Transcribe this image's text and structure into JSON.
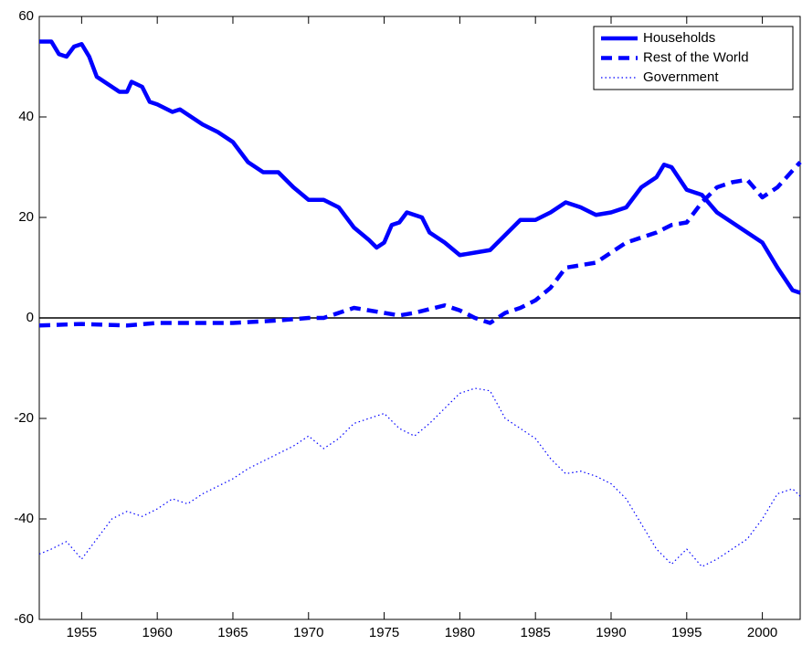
{
  "chart_data": {
    "type": "line",
    "xlim": [
      1952.2,
      2002.5
    ],
    "xticks": [
      1955,
      1960,
      1965,
      1970,
      1975,
      1980,
      1985,
      1990,
      1995,
      2000
    ],
    "ylim": [
      -60,
      60
    ],
    "yticks": [
      -60,
      -40,
      -20,
      0,
      20,
      40,
      60
    ],
    "legend": "top-right",
    "series": [
      {
        "name": "Households",
        "color": "#0000ff",
        "style": "solid",
        "x": [
          1952.2,
          1953,
          1953.5,
          1954,
          1954.5,
          1955,
          1955.5,
          1956,
          1957,
          1957.5,
          1958,
          1958.3,
          1959,
          1959.5,
          1960,
          1961,
          1961.5,
          1962,
          1963,
          1964,
          1965,
          1966,
          1967,
          1968,
          1969,
          1970,
          1971,
          1972,
          1973,
          1974,
          1974.5,
          1975,
          1975.5,
          1976,
          1976.5,
          1977,
          1977.5,
          1978,
          1979,
          1980,
          1981,
          1982,
          1983,
          1984,
          1985,
          1986,
          1987,
          1988,
          1989,
          1990,
          1991,
          1992,
          1993,
          1993.5,
          1994,
          1995,
          1996,
          1997,
          1998,
          1999,
          2000,
          2001,
          2002,
          2002.5
        ],
        "values": [
          55,
          55,
          52.5,
          52,
          54,
          54.5,
          52,
          48,
          46,
          45,
          45,
          47,
          46,
          43,
          42.5,
          41,
          41.5,
          40.5,
          38.5,
          37,
          35,
          31,
          29,
          29,
          26,
          23.5,
          23.5,
          22,
          18,
          15.5,
          14,
          15,
          18.5,
          19,
          21,
          20.5,
          20,
          17,
          15,
          12.5,
          13,
          13.5,
          16.5,
          19.5,
          19.5,
          21,
          23,
          22,
          20.5,
          21,
          22,
          26,
          28,
          30.5,
          30,
          25.5,
          24.5,
          21,
          19,
          17,
          15,
          10,
          5.5,
          5
        ]
      },
      {
        "name": "Rest of the World",
        "color": "#0000ff",
        "style": "dashed",
        "x": [
          1952.2,
          1955,
          1958,
          1960,
          1963,
          1965,
          1968,
          1970,
          1971,
          1973,
          1974,
          1975,
          1976,
          1977,
          1979,
          1980,
          1981,
          1982,
          1983,
          1984,
          1985,
          1986,
          1987,
          1989,
          1990,
          1991,
          1992,
          1993,
          1994,
          1995,
          1996,
          1997,
          1998,
          1999,
          2000,
          2001,
          2002.5
        ],
        "values": [
          -1.5,
          -1.2,
          -1.5,
          -1,
          -1,
          -1,
          -0.5,
          0,
          0,
          2,
          1.5,
          1,
          0.5,
          1,
          2.5,
          1.5,
          0,
          -1,
          1,
          2,
          3.5,
          6,
          10,
          11,
          13,
          15,
          16,
          17,
          18.5,
          19,
          23,
          26,
          27,
          27.5,
          24,
          26,
          31
        ]
      },
      {
        "name": "Government",
        "color": "#0000ff",
        "style": "dotted",
        "x": [
          1952.2,
          1953,
          1954,
          1955,
          1956,
          1957,
          1958,
          1959,
          1960,
          1961,
          1962,
          1963,
          1964,
          1965,
          1966,
          1967,
          1968,
          1969,
          1970,
          1971,
          1972,
          1973,
          1974,
          1975,
          1976,
          1977,
          1978,
          1979,
          1980,
          1981,
          1982,
          1983,
          1984,
          1985,
          1986,
          1987,
          1988,
          1989,
          1990,
          1991,
          1992,
          1993,
          1994,
          1995,
          1996,
          1997,
          1998,
          1999,
          2000,
          2001,
          2002,
          2002.5
        ],
        "values": [
          -47,
          -46,
          -44.5,
          -48,
          -44,
          -40,
          -38.5,
          -39.5,
          -38,
          -36,
          -37,
          -35,
          -33.5,
          -32,
          -30,
          -28.5,
          -27,
          -25.5,
          -23.5,
          -26,
          -24,
          -21,
          -20,
          -19,
          -22,
          -23.5,
          -21,
          -18,
          -15,
          -14,
          -14.5,
          -20,
          -22,
          -24,
          -28,
          -31,
          -30.5,
          -31.5,
          -33,
          -36,
          -41,
          -46,
          -49,
          -46,
          -49.5,
          -48,
          -46,
          -44,
          -40,
          -35,
          -34,
          -35.5
        ]
      }
    ]
  }
}
